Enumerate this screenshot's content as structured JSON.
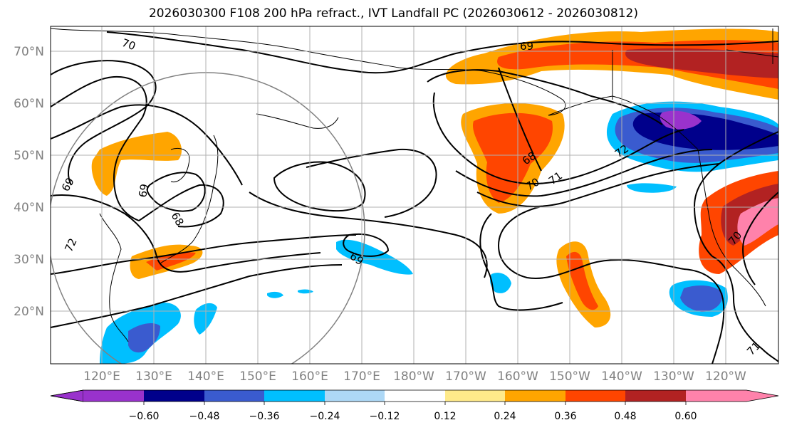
{
  "title": "2026030300 F108 200 hPa refract., IVT Landfall PC (2026030612 - 2026030812)",
  "lat_labels": [
    "70°N",
    "60°N",
    "50°N",
    "40°N",
    "30°N",
    "20°N"
  ],
  "lon_labels": [
    "120°E",
    "130°E",
    "140°E",
    "150°E",
    "160°E",
    "170°E",
    "180°W",
    "170°W",
    "160°W",
    "150°W",
    "140°W",
    "130°W",
    "120°W"
  ],
  "colorbar": {
    "ticks": [
      "−0.60",
      "−0.48",
      "−0.36",
      "−0.24",
      "−0.12",
      "0.12",
      "0.24",
      "0.36",
      "0.48",
      "0.60"
    ],
    "colors": [
      "#9932cc",
      "#00008b",
      "#3a5bcf",
      "#00bfff",
      "#add8f6",
      "#ffffff",
      "#ffea8a",
      "#ffa500",
      "#ff4500",
      "#b22222",
      "#ff82ab"
    ]
  },
  "contour_labels": [
    "70",
    "69",
    "69",
    "68",
    "69",
    "72",
    "68",
    "70",
    "71",
    "72",
    "69",
    "70",
    "71"
  ],
  "colors": {
    "axis": "#000000",
    "grid": "#b0b0b0",
    "tick_text": "#808080",
    "contour": "#000000",
    "circle": "#808080"
  }
}
